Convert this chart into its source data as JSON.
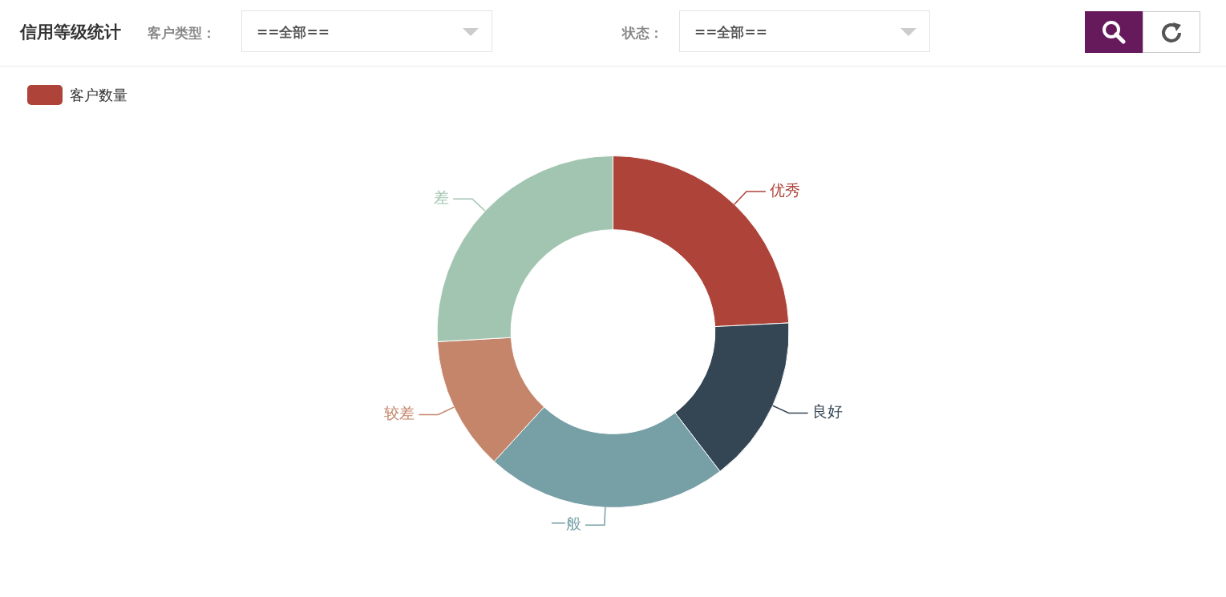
{
  "chart_data": {
    "type": "donut",
    "title": "信用等级统计",
    "categories": [
      "优秀",
      "良好",
      "一般",
      "较差",
      "差"
    ],
    "series": [
      {
        "name": "客户数量",
        "color": "#ad4339",
        "values": [
          24.2,
          15.4,
          22.2,
          12.3,
          25.9
        ],
        "colors": [
          "#ad4339",
          "#344554",
          "#779fa6",
          "#c4856a",
          "#a2c5b1"
        ]
      }
    ],
    "legend": "top left",
    "annotations": [
      "客户类型：",
      "==全部==",
      "状态：",
      "==全部=="
    ]
  }
}
